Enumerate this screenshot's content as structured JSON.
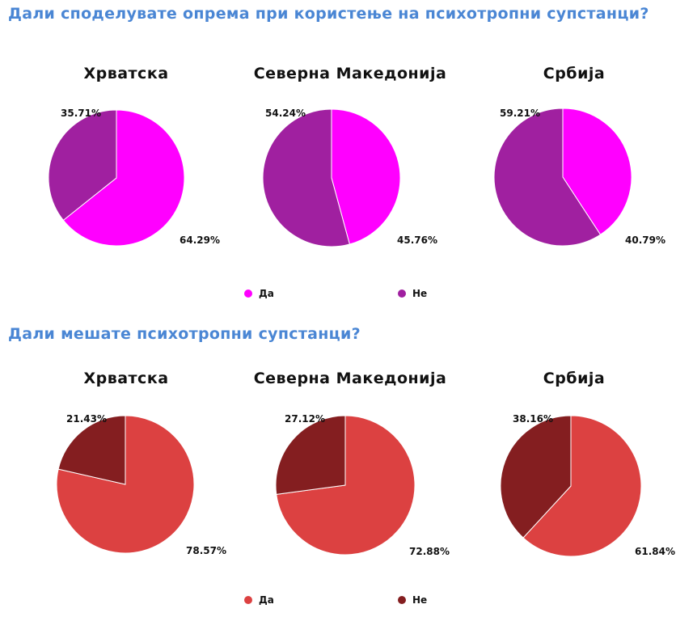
{
  "sections": [
    {
      "question": "Дали споделувате опрема при користење на психотропни супстанци?",
      "legend": [
        {
          "label": "Да",
          "color": "#ff00ff"
        },
        {
          "label": "Не",
          "color": "#a020a0"
        }
      ]
    },
    {
      "question": "Дали мешате психотропни супстанци?",
      "legend": [
        {
          "label": "Да",
          "color": "#dc4141"
        },
        {
          "label": "Не",
          "color": "#841e20"
        }
      ]
    }
  ],
  "chart_data": [
    {
      "type": "pie",
      "title": "Хрватска",
      "labels": [
        "Да",
        "Не"
      ],
      "values": [
        64.29,
        35.71
      ],
      "value_labels": [
        "64.29%",
        "35.71%"
      ],
      "colors": [
        "#ff00ff",
        "#a020a0"
      ]
    },
    {
      "type": "pie",
      "title": "Северна Македонија",
      "labels": [
        "Да",
        "Не"
      ],
      "values": [
        45.76,
        54.24
      ],
      "value_labels": [
        "45.76%",
        "54.24%"
      ],
      "colors": [
        "#ff00ff",
        "#a020a0"
      ]
    },
    {
      "type": "pie",
      "title": "Србија",
      "labels": [
        "Да",
        "Не"
      ],
      "values": [
        40.79,
        59.21
      ],
      "value_labels": [
        "40.79%",
        "59.21%"
      ],
      "colors": [
        "#ff00ff",
        "#a020a0"
      ]
    },
    {
      "type": "pie",
      "title": "Хрватска",
      "labels": [
        "Да",
        "Не"
      ],
      "values": [
        78.57,
        21.43
      ],
      "value_labels": [
        "78.57%",
        "21.43%"
      ],
      "colors": [
        "#dc4141",
        "#841e20"
      ]
    },
    {
      "type": "pie",
      "title": "Северна Македонија",
      "labels": [
        "Да",
        "Не"
      ],
      "values": [
        72.88,
        27.12
      ],
      "value_labels": [
        "72.88%",
        "27.12%"
      ],
      "colors": [
        "#dc4141",
        "#841e20"
      ]
    },
    {
      "type": "pie",
      "title": "Србија",
      "labels": [
        "Да",
        "Не"
      ],
      "values": [
        61.84,
        38.16
      ],
      "value_labels": [
        "61.84%",
        "38.16%"
      ],
      "colors": [
        "#dc4141",
        "#841e20"
      ]
    }
  ]
}
